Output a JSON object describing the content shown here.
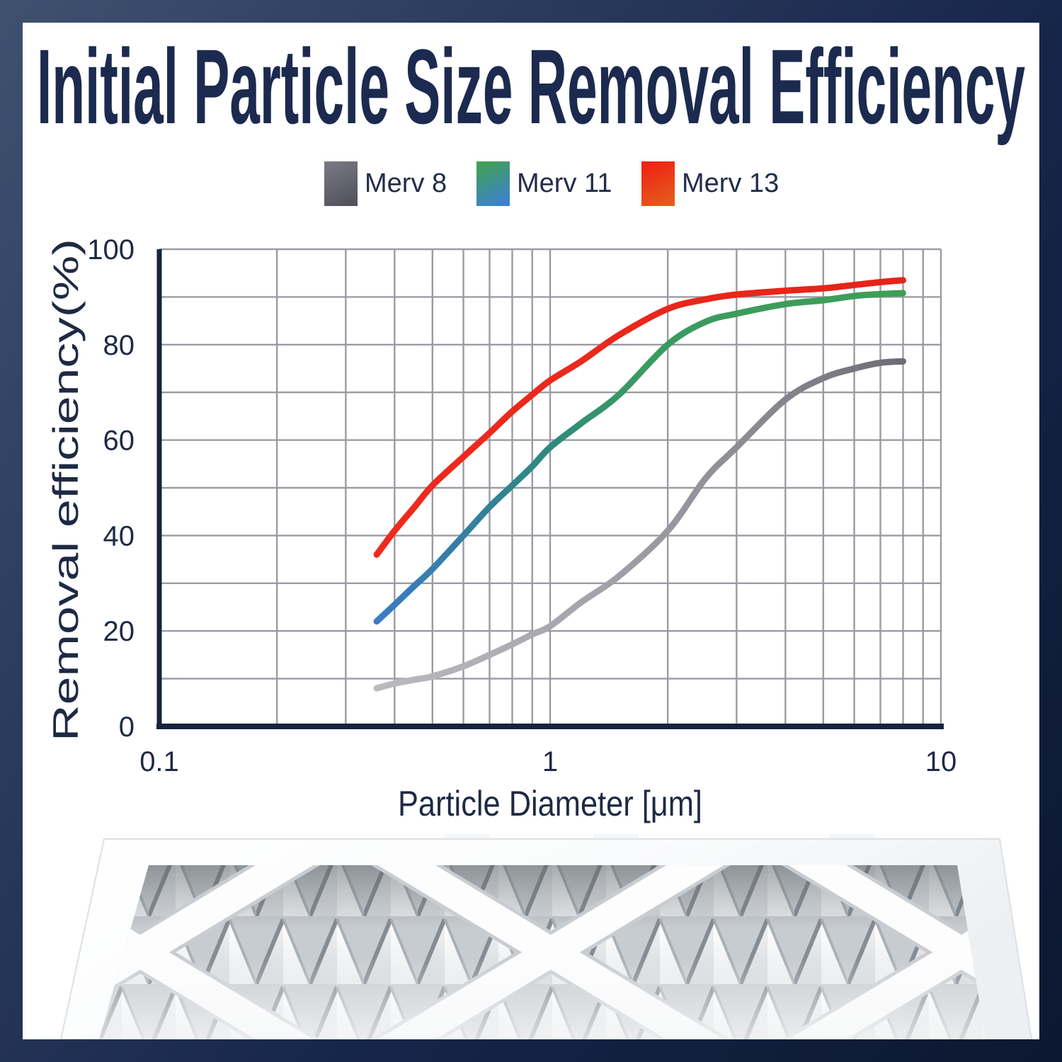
{
  "title": {
    "text": "Initial Particle Size Removal Efficiency",
    "color": "#1b2a4e"
  },
  "colors": {
    "background_gradient": [
      "#40506f",
      "#0c1830"
    ],
    "card": "#ffffff",
    "grid": "#9b9ba3",
    "axis_spine": "#16243f",
    "tick_text": "#1e2a44"
  },
  "legend": {
    "items": [
      {
        "label": "Merv 8",
        "swatch_from": "#7b7b85",
        "swatch_to": "#4f4f59"
      },
      {
        "label": "Merv 11",
        "swatch_from": "#43a24b",
        "swatch_to": "#3b7edc"
      },
      {
        "label": "Merv 13",
        "swatch_from": "#f01d15",
        "swatch_to": "#e4611c"
      }
    ]
  },
  "chart_data": {
    "type": "line",
    "title": "",
    "xlabel": "Particle Diameter [μm]",
    "ylabel": "Removal efficiency(%)",
    "x_scale": "log",
    "xlim": [
      0.1,
      10
    ],
    "ylim": [
      0,
      100
    ],
    "grid": "on",
    "legend_position": "top",
    "x_ticks": [
      {
        "value": 0.1,
        "label": "0.1"
      },
      {
        "value": 1,
        "label": "1"
      },
      {
        "value": 10,
        "label": "10"
      }
    ],
    "y_ticks": [
      {
        "value": 0,
        "label": "0"
      },
      {
        "value": 20,
        "label": "20"
      },
      {
        "value": 40,
        "label": "40"
      },
      {
        "value": 60,
        "label": "60"
      },
      {
        "value": 80,
        "label": "80"
      },
      {
        "value": 100,
        "label": "100"
      }
    ],
    "x_gridlines": [
      0.2,
      0.3,
      0.4,
      0.5,
      0.6,
      0.7,
      0.8,
      0.9,
      1,
      2,
      3,
      4,
      5,
      6,
      7,
      8,
      9,
      10
    ],
    "y_gridlines": [
      10,
      20,
      30,
      40,
      50,
      60,
      70,
      80,
      90,
      100
    ],
    "series": [
      {
        "name": "Merv 8",
        "gradient_stops": [
          [
            0,
            "#bababf"
          ],
          [
            0.4,
            "#a4a4ac"
          ],
          [
            0.72,
            "#8a8a92"
          ],
          [
            1,
            "#6c6c74"
          ]
        ],
        "points": [
          [
            0.36,
            8
          ],
          [
            0.4,
            9
          ],
          [
            0.45,
            9.8
          ],
          [
            0.5,
            10.5
          ],
          [
            0.6,
            12.6
          ],
          [
            0.7,
            15
          ],
          [
            0.8,
            17.2
          ],
          [
            0.9,
            19.3
          ],
          [
            1,
            21
          ],
          [
            1.2,
            26
          ],
          [
            1.5,
            31.5
          ],
          [
            2,
            41
          ],
          [
            2.5,
            52
          ],
          [
            3,
            58.5
          ],
          [
            4,
            68.5
          ],
          [
            5,
            73
          ],
          [
            6,
            75
          ],
          [
            7,
            76.2
          ],
          [
            8,
            76.5
          ]
        ]
      },
      {
        "name": "Merv 11",
        "gradient_stops": [
          [
            0,
            "#3b7cc6"
          ],
          [
            0.18,
            "#337f9f"
          ],
          [
            0.32,
            "#2f897f"
          ],
          [
            0.5,
            "#3a9a62"
          ],
          [
            1,
            "#3f9e55"
          ]
        ],
        "points": [
          [
            0.36,
            22
          ],
          [
            0.4,
            25.5
          ],
          [
            0.45,
            29.5
          ],
          [
            0.5,
            33
          ],
          [
            0.6,
            40
          ],
          [
            0.7,
            46
          ],
          [
            0.8,
            50.5
          ],
          [
            0.9,
            54.5
          ],
          [
            1,
            58.5
          ],
          [
            1.2,
            63.5
          ],
          [
            1.5,
            69.5
          ],
          [
            2,
            80
          ],
          [
            2.5,
            84.8
          ],
          [
            3,
            86.5
          ],
          [
            4,
            88.5
          ],
          [
            5,
            89.3
          ],
          [
            6,
            90.2
          ],
          [
            7,
            90.6
          ],
          [
            8,
            90.8
          ]
        ]
      },
      {
        "name": "Merv 13",
        "gradient_stops": [
          [
            0,
            "#ee2a1e"
          ],
          [
            1,
            "#e52417"
          ]
        ],
        "points": [
          [
            0.36,
            36
          ],
          [
            0.4,
            41
          ],
          [
            0.45,
            46
          ],
          [
            0.5,
            50.5
          ],
          [
            0.6,
            56.5
          ],
          [
            0.7,
            61.5
          ],
          [
            0.8,
            66
          ],
          [
            0.9,
            69.5
          ],
          [
            1,
            72.5
          ],
          [
            1.2,
            76.5
          ],
          [
            1.5,
            82
          ],
          [
            2,
            87.5
          ],
          [
            2.5,
            89.5
          ],
          [
            3,
            90.5
          ],
          [
            4,
            91.3
          ],
          [
            5,
            91.8
          ],
          [
            6,
            92.5
          ],
          [
            7,
            93.1
          ],
          [
            8,
            93.5
          ]
        ]
      }
    ]
  }
}
